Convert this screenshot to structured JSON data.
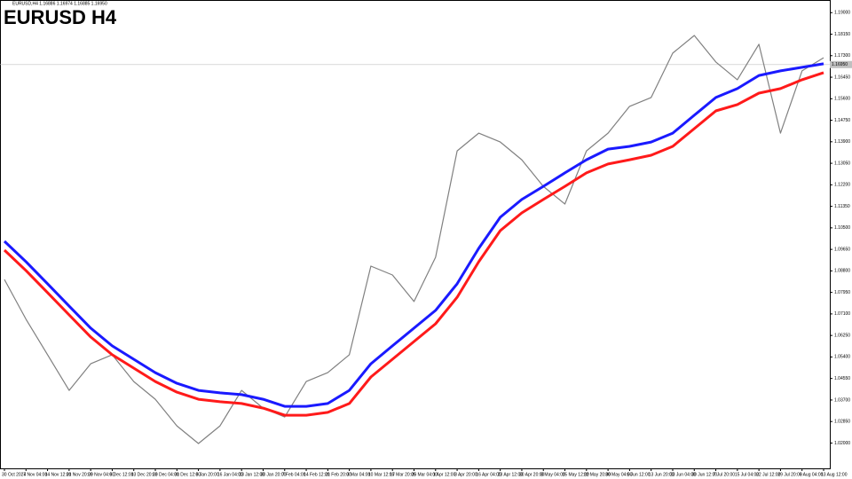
{
  "chart_data": {
    "type": "line",
    "title": "EURUSD H4",
    "header": "EURUSD,H4  1.16886 1.16974 1.16885 1.16950",
    "current_price": {
      "value": 1.1695,
      "label": "1.16950"
    },
    "categories": [
      "30 Oct 2024",
      "7 Nov 04:00",
      "14 Nov 12:00",
      "21 Nov 20:00",
      "29 Nov 04:00",
      "6 Dec 12:00",
      "13 Dec 20:00",
      "23 Dec 04:00",
      "31 Dec 12:00",
      "8 Jan 20:00",
      "16 Jan 04:00",
      "23 Jan 12:00",
      "30 Jan 20:00",
      "7 Feb 04:00",
      "14 Feb 12:00",
      "21 Feb 20:00",
      "3 Mar 04:00",
      "10 Mar 12:00",
      "17 Mar 20:00",
      "25 Mar 04:00",
      "1 Apr 12:00",
      "8 Apr 20:00",
      "16 Apr 04:00",
      "23 Apr 12:00",
      "30 Apr 20:00",
      "8 May 04:00",
      "15 May 12:00",
      "22 May 20:00",
      "30 May 04:00",
      "6 Jun 12:00",
      "13 Jun 20:00",
      "23 Jun 04:00",
      "30 Jun 12:00",
      "7 Jul 20:00",
      "15 Jul 04:00",
      "22 Jul 12:00",
      "29 Jul 20:00",
      "6 Aug 04:00",
      "13 Aug 12:00"
    ],
    "series": [
      {
        "color": "#808080",
        "width": 1.2,
        "values": [
          1.0846,
          1.0689,
          1.0549,
          1.0408,
          1.0513,
          1.0549,
          1.0443,
          1.0373,
          1.0268,
          1.0198,
          1.0268,
          1.0408,
          1.0338,
          1.0303,
          1.0443,
          1.0478,
          1.0549,
          1.0899,
          1.0864,
          1.0759,
          1.0934,
          1.1354,
          1.1424,
          1.1389,
          1.1319,
          1.1214,
          1.1144,
          1.1354,
          1.1424,
          1.153,
          1.1565,
          1.174,
          1.181,
          1.1705,
          1.1635,
          1.1775,
          1.1424,
          1.167,
          1.1722
        ]
      },
      {
        "color": "#1a1aff",
        "width": 3,
        "values": [
          1.0997,
          1.0916,
          1.0829,
          1.0741,
          1.0654,
          1.0584,
          1.0531,
          1.0478,
          1.0436,
          1.0408,
          1.0398,
          1.0391,
          1.0373,
          1.0345,
          1.0345,
          1.0356,
          1.0408,
          1.0513,
          1.0584,
          1.0654,
          1.0724,
          1.0829,
          1.0969,
          1.1092,
          1.1162,
          1.1214,
          1.1267,
          1.1319,
          1.1361,
          1.1372,
          1.1389,
          1.1424,
          1.1495,
          1.1565,
          1.16,
          1.1652,
          1.167,
          1.1684,
          1.1698
        ]
      },
      {
        "color": "#ff1a1a",
        "width": 3,
        "values": [
          1.0962,
          1.0881,
          1.0794,
          1.0706,
          1.0619,
          1.0549,
          1.0496,
          1.0443,
          1.0401,
          1.0373,
          1.0363,
          1.0356,
          1.0338,
          1.031,
          1.031,
          1.0321,
          1.0356,
          1.0461,
          1.0531,
          1.0601,
          1.0671,
          1.0776,
          1.0916,
          1.1039,
          1.1109,
          1.1162,
          1.1214,
          1.1267,
          1.1302,
          1.1319,
          1.1337,
          1.1372,
          1.1442,
          1.1512,
          1.1537,
          1.1582,
          1.16,
          1.1635,
          1.1663
        ]
      }
    ],
    "ylim": [
      1.01,
      1.195
    ],
    "yticks": [
      {
        "value": 1.02,
        "label": "1.02000"
      },
      {
        "value": 1.0285,
        "label": "1.02850"
      },
      {
        "value": 1.037,
        "label": "1.03700"
      },
      {
        "value": 1.0455,
        "label": "1.04550"
      },
      {
        "value": 1.054,
        "label": "1.05400"
      },
      {
        "value": 1.0625,
        "label": "1.06250"
      },
      {
        "value": 1.071,
        "label": "1.07100"
      },
      {
        "value": 1.0795,
        "label": "1.07950"
      },
      {
        "value": 1.088,
        "label": "1.08800"
      },
      {
        "value": 1.0965,
        "label": "1.09650"
      },
      {
        "value": 1.105,
        "label": "1.10500"
      },
      {
        "value": 1.1135,
        "label": "1.11350"
      },
      {
        "value": 1.122,
        "label": "1.12200"
      },
      {
        "value": 1.1305,
        "label": "1.13050"
      },
      {
        "value": 1.139,
        "label": "1.13900"
      },
      {
        "value": 1.1475,
        "label": "1.14750"
      },
      {
        "value": 1.156,
        "label": "1.15600"
      },
      {
        "value": 1.1645,
        "label": "1.16450"
      },
      {
        "value": 1.173,
        "label": "1.17300"
      },
      {
        "value": 1.1815,
        "label": "1.18150"
      },
      {
        "value": 1.19,
        "label": "1.19000"
      }
    ],
    "grid": false
  }
}
